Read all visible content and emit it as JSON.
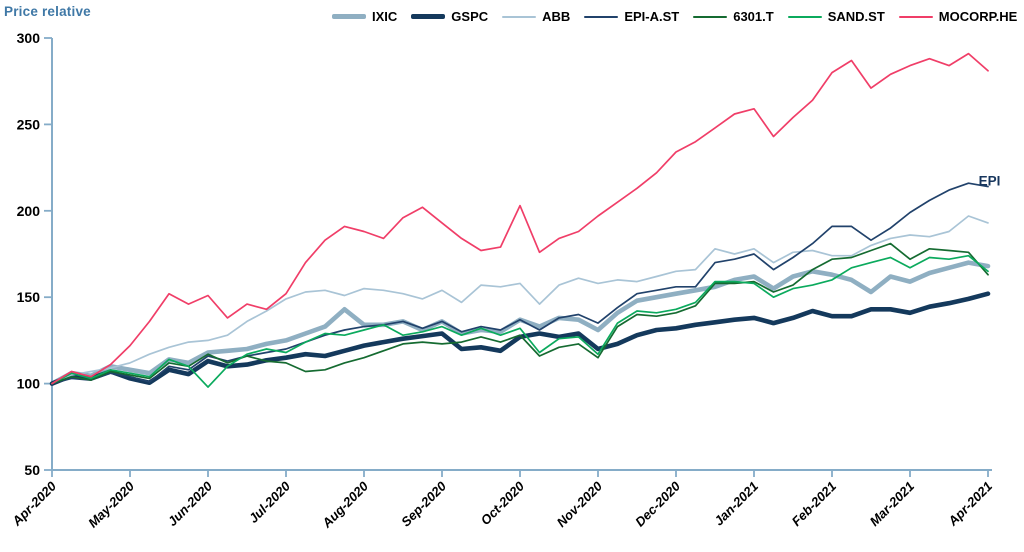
{
  "title": {
    "text": "Price relative",
    "color": "#3F78A6"
  },
  "axis": {
    "color": "#85ACC8",
    "tick_label_color": "#000000"
  },
  "legend": {
    "items": [
      {
        "label": "IXIC",
        "color": "#8FAFC2",
        "thick": true
      },
      {
        "label": "GSPC",
        "color": "#14395C",
        "thick": true
      },
      {
        "label": "ABB",
        "color": "#A9C4D6",
        "thick": false
      },
      {
        "label": "EPI-A.ST",
        "color": "#21426B",
        "thick": false
      },
      {
        "label": "6301.T",
        "color": "#156B31",
        "thick": false
      },
      {
        "label": "SAND.ST",
        "color": "#0BAA5D",
        "thick": false
      },
      {
        "label": "MOCORP.HE",
        "color": "#F03E68",
        "thick": false
      }
    ]
  },
  "annotation": {
    "text": "EPI",
    "color": "#17365D",
    "month": 11.88,
    "value": 217
  },
  "chart_data": {
    "type": "line",
    "title": "Price relative",
    "x_axis": {
      "unit": "month",
      "tick_labels": [
        "Apr-2020",
        "May-2020",
        "Jun-2020",
        "Jul-2020",
        "Aug-2020",
        "Sep-2020",
        "Oct-2020",
        "Nov-2020",
        "Dec-2020",
        "Jan-2021",
        "Feb-2021",
        "Mar-2021",
        "Apr-2021"
      ],
      "range_months": [
        0,
        12
      ]
    },
    "y_axis": {
      "ticks": [
        300,
        250,
        200,
        150,
        100,
        50
      ],
      "range": [
        50,
        300
      ],
      "grid": false
    },
    "x_step_months": 0.25,
    "legend_position": "top",
    "series": [
      {
        "name": "IXIC",
        "color": "#8FAFC2",
        "width": 4.6,
        "values": [
          100,
          106,
          104.5,
          110,
          108,
          106,
          114,
          112,
          118,
          119,
          120,
          123,
          125,
          129,
          133,
          143,
          134,
          134,
          136,
          131,
          136,
          129,
          131,
          130,
          137,
          133,
          138,
          137,
          131,
          141,
          148,
          150,
          152,
          154,
          156,
          160,
          162,
          155,
          162,
          165,
          163,
          160,
          153,
          162,
          159,
          164,
          167,
          170,
          168
        ]
      },
      {
        "name": "GSPC",
        "color": "#14395C",
        "width": 4.6,
        "values": [
          100,
          104.5,
          103,
          107,
          103,
          100.5,
          108,
          105.5,
          113,
          110,
          111,
          113.5,
          115,
          117,
          116,
          119,
          122,
          124,
          126,
          127.5,
          129,
          120,
          121,
          119,
          127,
          129,
          127,
          129,
          120,
          123,
          128,
          131,
          132,
          134,
          135.5,
          137,
          138,
          135,
          138,
          142,
          139,
          139,
          143,
          143,
          141,
          144.5,
          146.5,
          149,
          152
        ]
      },
      {
        "name": "ABB",
        "color": "#A9C4D6",
        "width": 1.7,
        "values": [
          100,
          105,
          107,
          109,
          112,
          117,
          121,
          124,
          125,
          128,
          136,
          142,
          149,
          153,
          154,
          151,
          155,
          154,
          152,
          149,
          154,
          147,
          157,
          156,
          158,
          146,
          157,
          161,
          158,
          160,
          159,
          162,
          165,
          166,
          178,
          175,
          178,
          170,
          176,
          177,
          174,
          174,
          180,
          184,
          186,
          185,
          188,
          197,
          193
        ]
      },
      {
        "name": "EPI-A.ST",
        "color": "#21426B",
        "width": 1.7,
        "values": [
          100,
          103,
          102,
          106,
          104,
          101,
          110,
          108,
          116,
          113,
          116,
          118,
          120,
          124,
          128,
          131,
          133,
          134,
          136,
          132,
          136,
          130,
          133,
          131,
          137,
          131,
          138,
          140,
          135,
          144,
          152,
          154,
          156,
          156,
          170,
          172,
          175,
          166,
          173,
          181,
          191,
          191,
          183,
          190,
          199,
          206,
          212,
          216,
          214
        ]
      },
      {
        "name": "6301.T",
        "color": "#156B31",
        "width": 1.7,
        "values": [
          100,
          104,
          102,
          107,
          105,
          103,
          112,
          110,
          117,
          112,
          116,
          113,
          112,
          107,
          108,
          112,
          115,
          119,
          123,
          124,
          123,
          124,
          127,
          124,
          128,
          116,
          121,
          123,
          115,
          133,
          140,
          139,
          141,
          145,
          158,
          158,
          159,
          153,
          157,
          166,
          172,
          173,
          177,
          181,
          172,
          178,
          177,
          176,
          163
        ]
      },
      {
        "name": "SAND.ST",
        "color": "#0BAA5D",
        "width": 1.7,
        "values": [
          100,
          106,
          103,
          108,
          106,
          104,
          114,
          110,
          98,
          110,
          117,
          120,
          118,
          124,
          129,
          128,
          131,
          134,
          128,
          130,
          133,
          128,
          132,
          128,
          132,
          118,
          126,
          127,
          117,
          135,
          142,
          141,
          143,
          147,
          159,
          159,
          158,
          150,
          155,
          157,
          160,
          167,
          170,
          173,
          167,
          173,
          172,
          174,
          165
        ]
      },
      {
        "name": "MOCORP.HE",
        "color": "#F03E68",
        "width": 1.7,
        "values": [
          100,
          107,
          104,
          111,
          122,
          136,
          152,
          146,
          151,
          138,
          146,
          143,
          152,
          170,
          183,
          191,
          188,
          184,
          196,
          202,
          193,
          184,
          177,
          179,
          203,
          176,
          184,
          188,
          197,
          205,
          213,
          222,
          234,
          240,
          248,
          256,
          259,
          243,
          254,
          264,
          280,
          287,
          271,
          279,
          284,
          288,
          284,
          291,
          281
        ]
      }
    ]
  }
}
